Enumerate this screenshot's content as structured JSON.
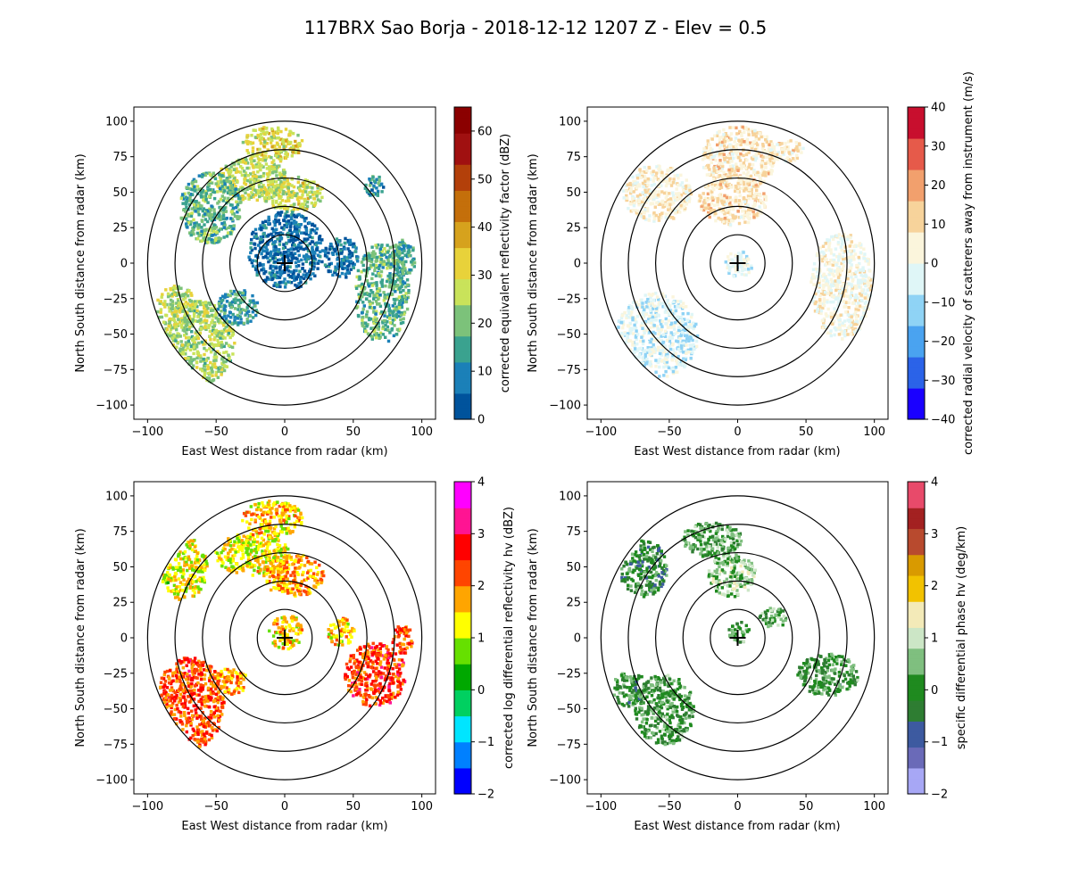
{
  "figure_title": "117BRX Sao Borja - 2018-12-12 1207 Z -  Elev = 0.5",
  "chart_data": [
    {
      "type": "heatmap",
      "panel": "top-left",
      "field": "corrected equivalent reflectivity factor",
      "xlabel": "East West distance from radar (km)",
      "ylabel": "North South distance from radar (km)",
      "xlim": [
        -110,
        110
      ],
      "ylim": [
        -110,
        110
      ],
      "xticks": [
        -100,
        -50,
        0,
        50,
        100
      ],
      "yticks": [
        -100,
        -75,
        -50,
        -25,
        0,
        25,
        50,
        75,
        100
      ],
      "range_rings_km": [
        20,
        40,
        60,
        80,
        100
      ],
      "colorbar": {
        "label": "corrected equivalent reflectivity factor (dBZ)",
        "min": 0,
        "max": 65,
        "ticks": [
          0,
          10,
          20,
          30,
          40,
          50,
          60
        ],
        "colors": [
          "#00539c",
          "#1b80b8",
          "#3aa28f",
          "#7cc27a",
          "#c9e35a",
          "#e8d23a",
          "#d6a21d",
          "#c46f0b",
          "#b3400a",
          "#a01010",
          "#8b0000"
        ]
      },
      "echoes": [
        {
          "x": -10,
          "y": 85,
          "w": 45,
          "h": 25,
          "v": 30
        },
        {
          "x": -25,
          "y": 60,
          "w": 55,
          "h": 30,
          "v": 26
        },
        {
          "x": 5,
          "y": 50,
          "w": 45,
          "h": 25,
          "v": 28
        },
        {
          "x": -55,
          "y": 40,
          "w": 45,
          "h": 50,
          "v": 18
        },
        {
          "x": 0,
          "y": 10,
          "w": 55,
          "h": 55,
          "v": 6
        },
        {
          "x": 40,
          "y": 5,
          "w": 25,
          "h": 30,
          "v": 6
        },
        {
          "x": 70,
          "y": -20,
          "w": 40,
          "h": 70,
          "v": 18
        },
        {
          "x": 85,
          "y": 5,
          "w": 20,
          "h": 25,
          "v": 16
        },
        {
          "x": -65,
          "y": -55,
          "w": 55,
          "h": 60,
          "v": 24
        },
        {
          "x": -80,
          "y": -30,
          "w": 30,
          "h": 30,
          "v": 26
        },
        {
          "x": -35,
          "y": -30,
          "w": 30,
          "h": 25,
          "v": 14
        },
        {
          "x": 65,
          "y": 55,
          "w": 15,
          "h": 15,
          "v": 12
        }
      ]
    },
    {
      "type": "heatmap",
      "panel": "top-right",
      "field": "corrected radial velocity of scatterers away from instrument",
      "xlabel": "East West distance from radar (km)",
      "ylabel": "North South distance from radar (km)",
      "xlim": [
        -110,
        110
      ],
      "ylim": [
        -110,
        110
      ],
      "xticks": [
        -100,
        -50,
        0,
        50,
        100
      ],
      "yticks": [
        -100,
        -75,
        -50,
        -25,
        0,
        25,
        50,
        75,
        100
      ],
      "range_rings_km": [
        20,
        40,
        60,
        80,
        100
      ],
      "colorbar": {
        "label": "corrected radial velocity of scatterers away from instrument (m/s)",
        "min": -40,
        "max": 40,
        "ticks": [
          -40,
          -30,
          -20,
          -10,
          0,
          10,
          20,
          30,
          40
        ],
        "colors": [
          "#1a00ff",
          "#2b63e8",
          "#4aa3f0",
          "#8fd3f5",
          "#dff6f7",
          "#fbf5dc",
          "#f7d39b",
          "#f2a06d",
          "#e65a4a",
          "#c80f2e"
        ]
      },
      "echoes": [
        {
          "x": 0,
          "y": 75,
          "w": 55,
          "h": 45,
          "v": 8
        },
        {
          "x": -60,
          "y": 50,
          "w": 50,
          "h": 40,
          "v": 6
        },
        {
          "x": -5,
          "y": 45,
          "w": 50,
          "h": 35,
          "v": 9
        },
        {
          "x": 75,
          "y": -15,
          "w": 45,
          "h": 75,
          "v": 2
        },
        {
          "x": -60,
          "y": -50,
          "w": 60,
          "h": 60,
          "v": -4
        },
        {
          "x": 0,
          "y": 0,
          "w": 20,
          "h": 20,
          "v": -2
        },
        {
          "x": 35,
          "y": 80,
          "w": 25,
          "h": 15,
          "v": 7
        }
      ]
    },
    {
      "type": "heatmap",
      "panel": "bottom-left",
      "field": "corrected log differential reflectivity hv",
      "xlabel": "East West distance from radar (km)",
      "ylabel": "North South distance from radar (km)",
      "xlim": [
        -110,
        110
      ],
      "ylim": [
        -110,
        110
      ],
      "xticks": [
        -100,
        -50,
        0,
        50,
        100
      ],
      "yticks": [
        -100,
        -75,
        -50,
        -25,
        0,
        25,
        50,
        75,
        100
      ],
      "range_rings_km": [
        20,
        40,
        60,
        80,
        100
      ],
      "colorbar": {
        "label": "corrected log differential reflectivity hv (dBZ)",
        "min": -2,
        "max": 4,
        "ticks": [
          -2,
          -1,
          0,
          1,
          2,
          3,
          4
        ],
        "colors": [
          "#0000ff",
          "#0080ff",
          "#00e5ff",
          "#00d060",
          "#00a800",
          "#66e000",
          "#ffff00",
          "#ffa500",
          "#ff4500",
          "#ff0000",
          "#ff1493",
          "#ff00ff"
        ]
      },
      "echoes": [
        {
          "x": -10,
          "y": 85,
          "w": 45,
          "h": 25,
          "v": 1.6
        },
        {
          "x": -25,
          "y": 60,
          "w": 55,
          "h": 30,
          "v": 1.3
        },
        {
          "x": 5,
          "y": 45,
          "w": 45,
          "h": 30,
          "v": 1.7
        },
        {
          "x": -75,
          "y": 50,
          "w": 35,
          "h": 45,
          "v": 1.2
        },
        {
          "x": -70,
          "y": -45,
          "w": 50,
          "h": 65,
          "v": 2.3
        },
        {
          "x": -40,
          "y": -30,
          "w": 25,
          "h": 20,
          "v": 1.8
        },
        {
          "x": 65,
          "y": -25,
          "w": 45,
          "h": 45,
          "v": 2.4
        },
        {
          "x": 40,
          "y": 5,
          "w": 20,
          "h": 20,
          "v": 1.5
        },
        {
          "x": 0,
          "y": 5,
          "w": 25,
          "h": 25,
          "v": 1.5
        },
        {
          "x": 85,
          "y": 0,
          "w": 15,
          "h": 20,
          "v": 2.2
        }
      ]
    },
    {
      "type": "heatmap",
      "panel": "bottom-right",
      "field": "specific differential phase hv",
      "xlabel": "East West distance from radar (km)",
      "ylabel": "North South distance from radar (km)",
      "xlim": [
        -110,
        110
      ],
      "ylim": [
        -110,
        110
      ],
      "xticks": [
        -100,
        -50,
        0,
        50,
        100
      ],
      "yticks": [
        -100,
        -75,
        -50,
        -25,
        0,
        25,
        50,
        75,
        100
      ],
      "range_rings_km": [
        20,
        40,
        60,
        80,
        100
      ],
      "colorbar": {
        "label": "specific differential phase hv (deg/km)",
        "min": -2,
        "max": 4,
        "ticks": [
          -2,
          -1,
          0,
          1,
          2,
          3,
          4
        ],
        "colors": [
          "#a7a7f5",
          "#6a6ab8",
          "#3d5aa0",
          "#2e7d32",
          "#1f8a1f",
          "#7fbf7f",
          "#cce6c6",
          "#f3eab8",
          "#f2c200",
          "#d99a00",
          "#b84a2e",
          "#a32121",
          "#e84a6a"
        ]
      },
      "echoes": [
        {
          "x": -5,
          "y": 45,
          "w": 35,
          "h": 30,
          "v": 0.6
        },
        {
          "x": -20,
          "y": 70,
          "w": 45,
          "h": 25,
          "v": 0.2
        },
        {
          "x": -70,
          "y": 50,
          "w": 35,
          "h": 40,
          "v": -0.1
        },
        {
          "x": -55,
          "y": -50,
          "w": 45,
          "h": 50,
          "v": 0.1
        },
        {
          "x": 65,
          "y": -25,
          "w": 45,
          "h": 30,
          "v": 0.1
        },
        {
          "x": -80,
          "y": -35,
          "w": 25,
          "h": 25,
          "v": 0.0
        },
        {
          "x": 0,
          "y": 5,
          "w": 15,
          "h": 15,
          "v": 0.3
        },
        {
          "x": 25,
          "y": 15,
          "w": 20,
          "h": 15,
          "v": 0.2
        }
      ]
    }
  ]
}
